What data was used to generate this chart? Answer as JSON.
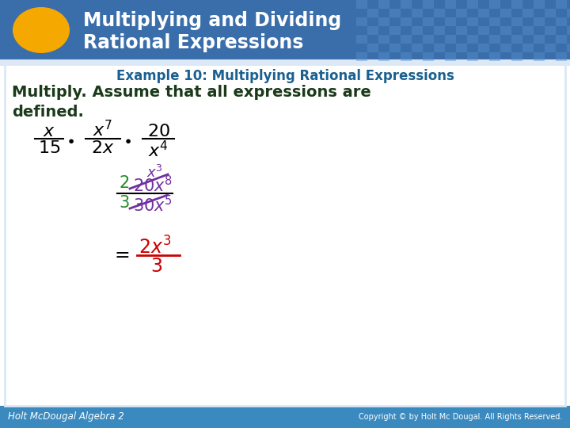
{
  "title_line1": "Multiplying and Dividing",
  "title_line2": "Rational Expressions",
  "title_bg_color": "#3a6eaa",
  "title_text_color": "#ffffff",
  "title_font_size": 17,
  "oval_color": "#f5a800",
  "example_text": "Example 10: Multiplying Rational Expressions",
  "example_color": "#1a6090",
  "example_font_size": 12,
  "body_text_color": "#1a3a1a",
  "body_font_size": 14,
  "main_bg_color": "#ffffff",
  "header_bg_color": "#3a6eaa",
  "footer_text_left": "Holt McDougal Algebra 2",
  "footer_text_right": "Copyright © by Holt Mc Dougal. All Rights Reserved.",
  "footer_bg_color": "#3a8abf",
  "footer_text_color": "#ffffff",
  "slide_bg": "#dce8f5",
  "green_color": "#228B22",
  "purple_color": "#7030a0",
  "red_color": "#cc0000",
  "black_color": "#000000"
}
